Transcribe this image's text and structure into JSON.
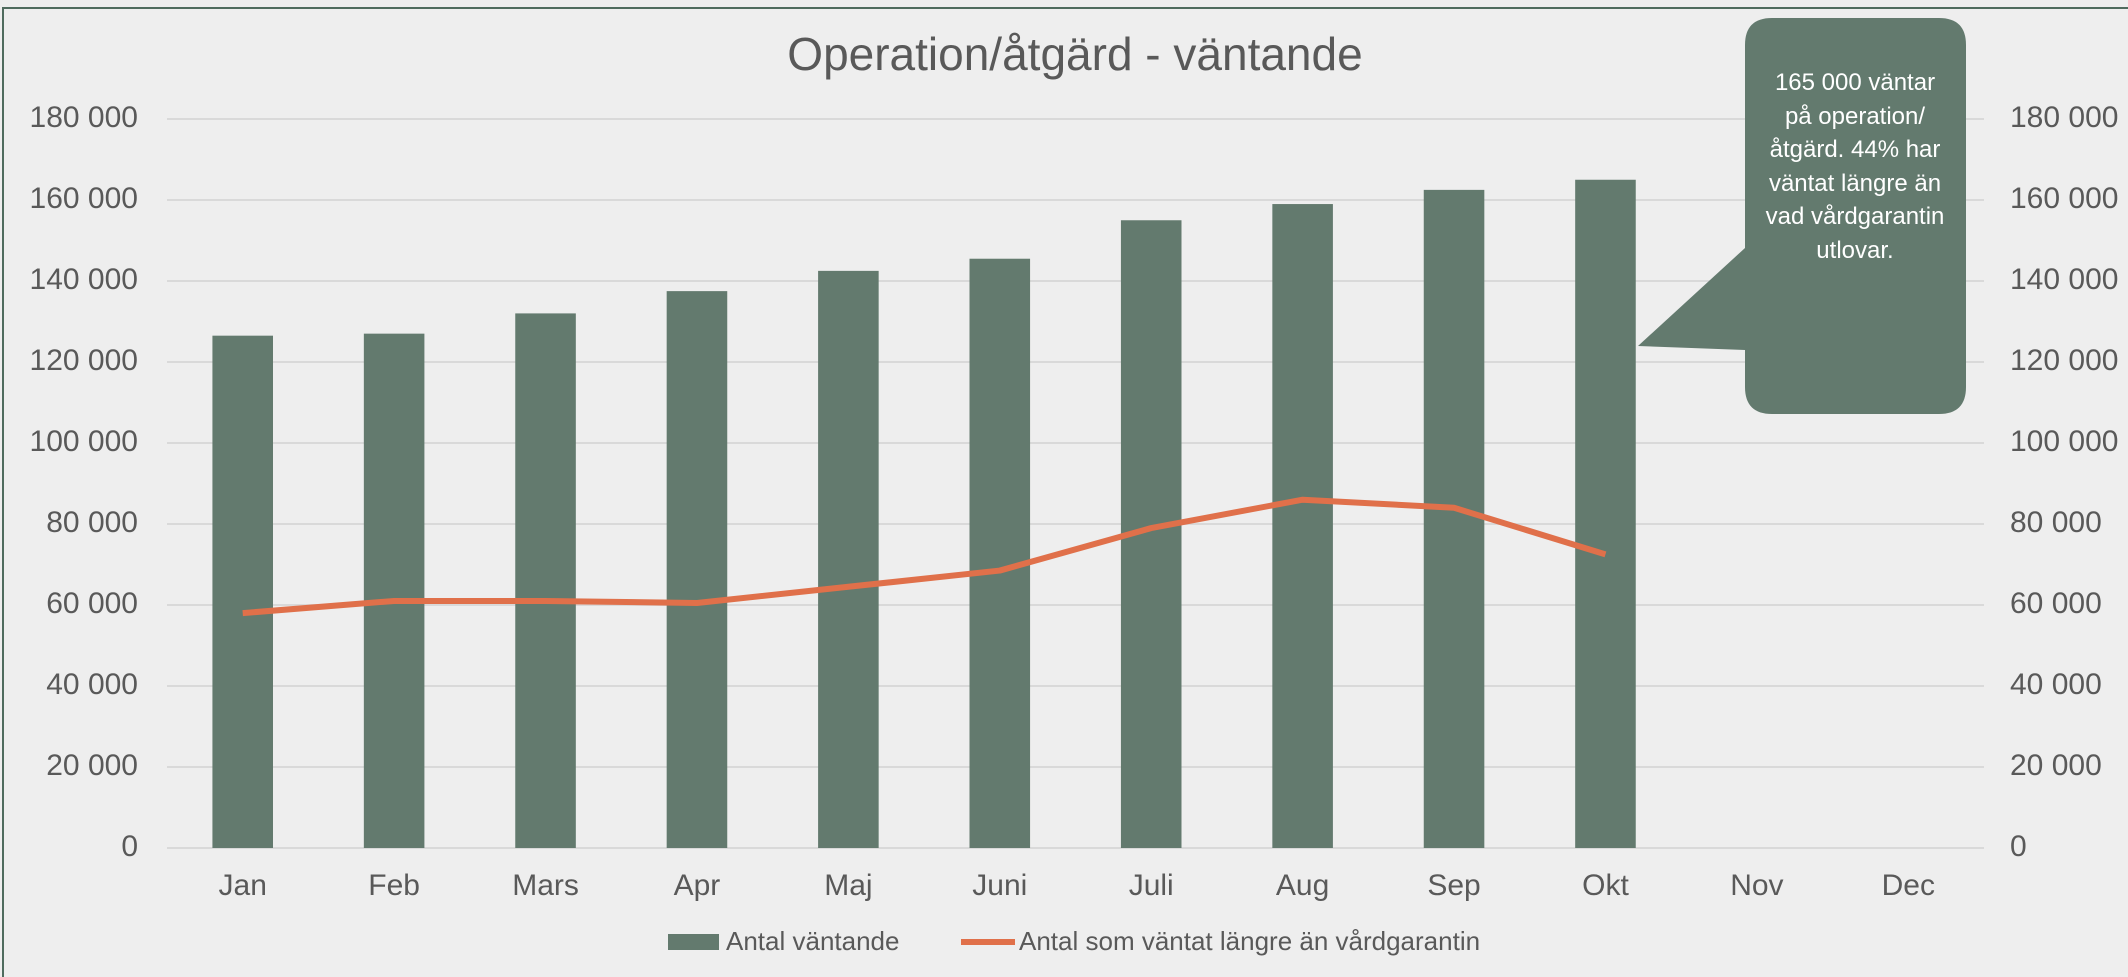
{
  "chart_data": {
    "type": "bar",
    "title": "Operation/åtgärd - väntande",
    "categories": [
      "Jan",
      "Feb",
      "Mars",
      "Apr",
      "Maj",
      "Juni",
      "Juli",
      "Aug",
      "Sep",
      "Okt",
      "Nov",
      "Dec"
    ],
    "series": [
      {
        "name": "Antal väntande",
        "type": "bar",
        "color": "#637a6e",
        "values": [
          126500,
          127000,
          132000,
          137500,
          142500,
          145500,
          155000,
          159000,
          162500,
          165000,
          null,
          null
        ]
      },
      {
        "name": "Antal som väntat längre än vårdgarantin",
        "type": "line",
        "axis": "y2",
        "color": "#e0704a",
        "values": [
          58000,
          61000,
          61000,
          60500,
          64500,
          68500,
          79000,
          86000,
          84000,
          72500,
          null,
          null
        ]
      }
    ],
    "ylim": [
      0,
      180000
    ],
    "yticks": [
      0,
      {
        "value": 20000,
        "label": "20 000"
      },
      {
        "value": 40000,
        "label": "40 000"
      },
      {
        "value": 60000,
        "label": "60 000"
      },
      {
        "value": 80000,
        "label": "80 000"
      },
      {
        "value": 100000,
        "label": "100 000"
      },
      {
        "value": 120000,
        "label": "120 000"
      },
      {
        "value": 140000,
        "label": "140 000"
      },
      {
        "value": 160000,
        "label": "160 000"
      },
      {
        "value": 180000,
        "label": "180 000"
      }
    ],
    "y2lim": [
      0,
      180000
    ],
    "y2ticks": [
      0,
      {
        "value": 20000,
        "label": "20 000"
      },
      {
        "value": 40000,
        "label": "40 000"
      },
      {
        "value": 60000,
        "label": "60 000"
      },
      {
        "value": 80000,
        "label": "80 000"
      },
      {
        "value": 100000,
        "label": "100 000"
      },
      {
        "value": 120000,
        "label": "120 000"
      },
      {
        "value": 140000,
        "label": "140 000"
      },
      {
        "value": 160000,
        "label": "160 000"
      },
      {
        "value": 180000,
        "label": "180 000"
      }
    ],
    "grid": true,
    "legend": "bottom",
    "annotation": "165 000 väntar på operation/ åtgärd. 44% har väntat längre än vad vårdgarantin utlovar."
  }
}
